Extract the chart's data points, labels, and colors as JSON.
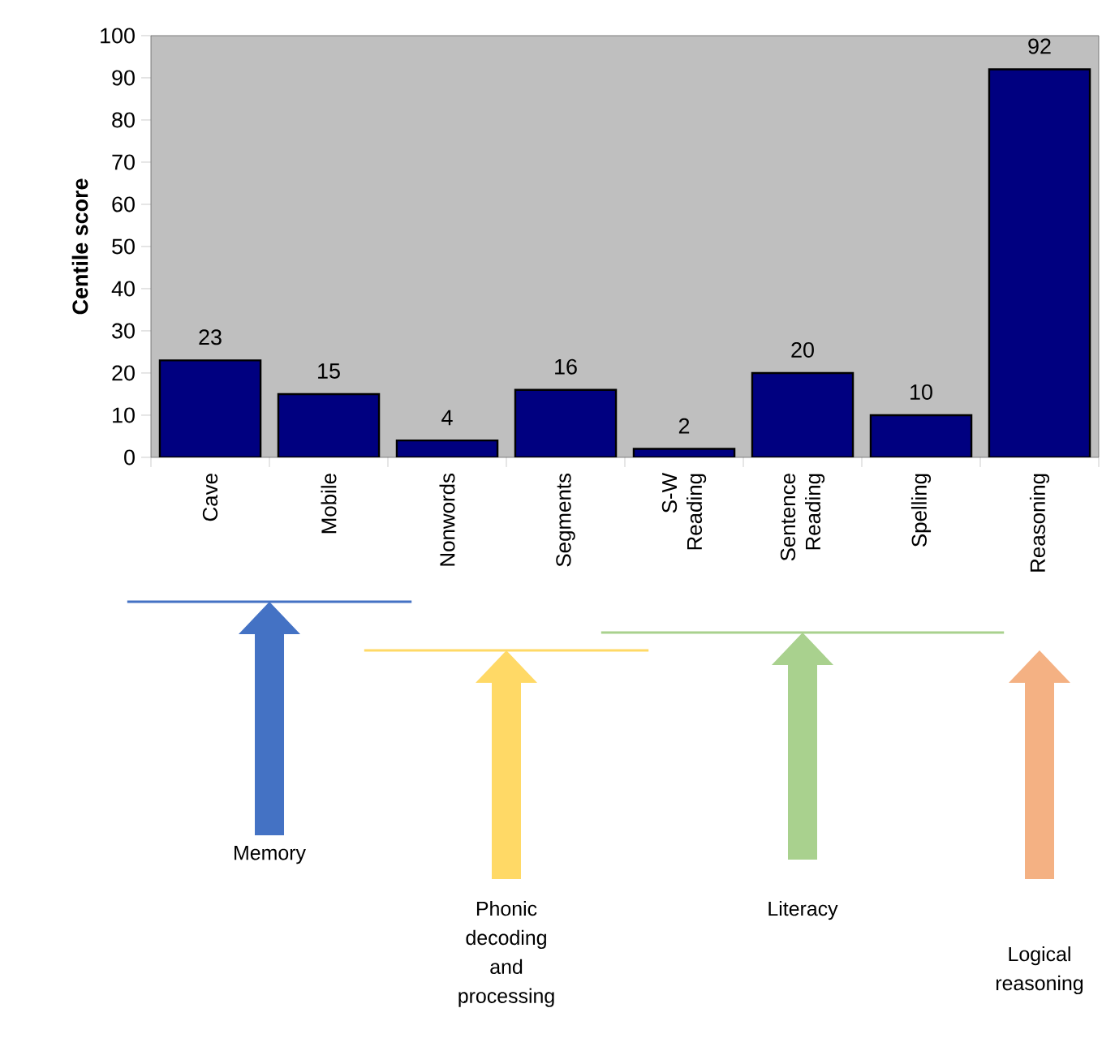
{
  "chart_data": {
    "type": "bar",
    "ylabel": "Centile score",
    "categories": [
      "Cave",
      "Mobile",
      "Nonwords",
      "Segments",
      "S-W Reading",
      "Sentence Reading",
      "Spelling",
      "Reasoning"
    ],
    "values": [
      23,
      15,
      4,
      16,
      2,
      20,
      10,
      92
    ],
    "color": "#000080",
    "ylim": [
      0,
      100
    ],
    "yticks": [
      0,
      10,
      20,
      30,
      40,
      50,
      60,
      70,
      80,
      90,
      100
    ],
    "data_labels": true,
    "grid": false,
    "annotations": [
      "Memory",
      "Phonic decoding and processing",
      "Literacy",
      "Logical reasoning"
    ]
  }
}
